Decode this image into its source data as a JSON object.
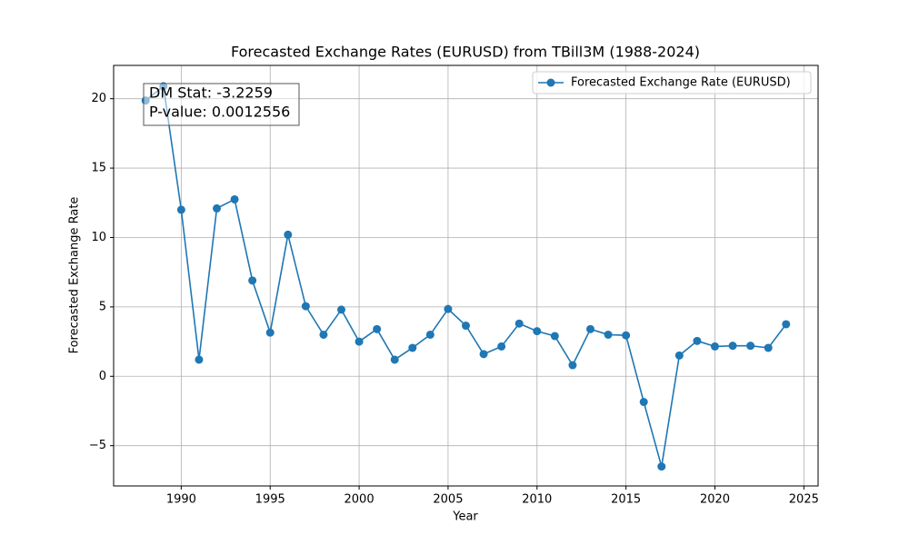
{
  "chart_data": {
    "type": "line",
    "title": "Forecasted Exchange Rates (EURUSD) from TBill3M (1988-2024)",
    "xlabel": "Year",
    "ylabel": "Forecasted Exchange Rate",
    "x": [
      1988,
      1989,
      1990,
      1991,
      1992,
      1993,
      1994,
      1995,
      1996,
      1997,
      1998,
      1999,
      2000,
      2001,
      2002,
      2003,
      2004,
      2005,
      2006,
      2007,
      2008,
      2009,
      2010,
      2011,
      2012,
      2013,
      2014,
      2015,
      2016,
      2017,
      2018,
      2019,
      2020,
      2021,
      2022,
      2023,
      2024
    ],
    "series": [
      {
        "name": "Forecasted Exchange Rate (EURUSD)",
        "color": "#1f77b4",
        "values": [
          19.87,
          20.9,
          12.0,
          1.2,
          12.1,
          12.75,
          6.9,
          3.15,
          10.2,
          5.05,
          3.0,
          4.8,
          2.5,
          3.4,
          1.2,
          2.05,
          3.0,
          4.85,
          3.65,
          1.6,
          2.15,
          3.8,
          3.25,
          2.9,
          0.8,
          3.4,
          3.0,
          2.95,
          -1.85,
          -6.5,
          1.5,
          2.55,
          2.15,
          2.2,
          2.2,
          2.05,
          3.75
        ]
      }
    ],
    "xlim": [
      1986.2,
      2025.8
    ],
    "xticks": [
      1990,
      1995,
      2000,
      2005,
      2010,
      2015,
      2020,
      2025
    ],
    "ylim": [
      -7.9,
      22.4
    ],
    "yticks": [
      {
        "value": -5,
        "label": "−5"
      },
      0,
      5,
      10,
      15,
      20
    ],
    "grid": true,
    "legend": "upper right",
    "annotations": [
      "DM Stat: -3.2259",
      "P-value: 0.0012556"
    ]
  }
}
